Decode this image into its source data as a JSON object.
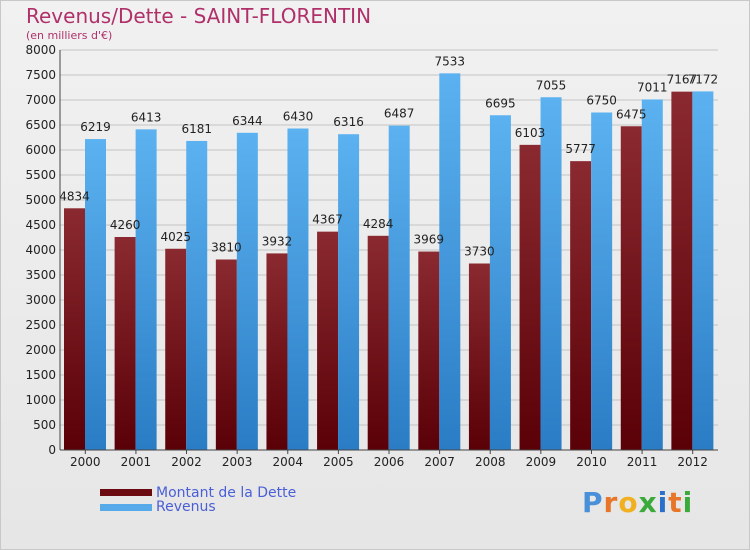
{
  "header": {
    "title": "Revenus/Dette - SAINT-FLORENTIN",
    "subtitle": "(en milliers d'€)"
  },
  "logo": {
    "letters": [
      "P",
      "r",
      "o",
      "x",
      "i",
      "t",
      "i"
    ]
  },
  "colors": {
    "dette": "#6b0a10",
    "revenus": "#56aaea",
    "title": "#b0306a",
    "legend_text": "#4a5fd6"
  },
  "chart_data": {
    "type": "bar",
    "title": "Revenus/Dette - SAINT-FLORENTIN",
    "subtitle": "(en milliers d'€)",
    "categories": [
      "2000",
      "2001",
      "2002",
      "2003",
      "2004",
      "2005",
      "2006",
      "2007",
      "2008",
      "2009",
      "2010",
      "2011",
      "2012"
    ],
    "series": [
      {
        "name": "Montant de la Dette",
        "values": [
          4834,
          4260,
          4025,
          3810,
          3932,
          4367,
          4284,
          3969,
          3730,
          6103,
          5777,
          6475,
          7167
        ]
      },
      {
        "name": "Revenus",
        "values": [
          6219,
          6413,
          6181,
          6344,
          6430,
          6316,
          6487,
          7533,
          6695,
          7055,
          6750,
          7011,
          7172
        ]
      }
    ],
    "ylim": [
      0,
      8000
    ],
    "yticks": [
      0,
      500,
      1000,
      1500,
      2000,
      2500,
      3000,
      3500,
      4000,
      4500,
      5000,
      5500,
      6000,
      6500,
      7000,
      7500,
      8000
    ],
    "grid": true,
    "legend_position": "bottom-left"
  }
}
